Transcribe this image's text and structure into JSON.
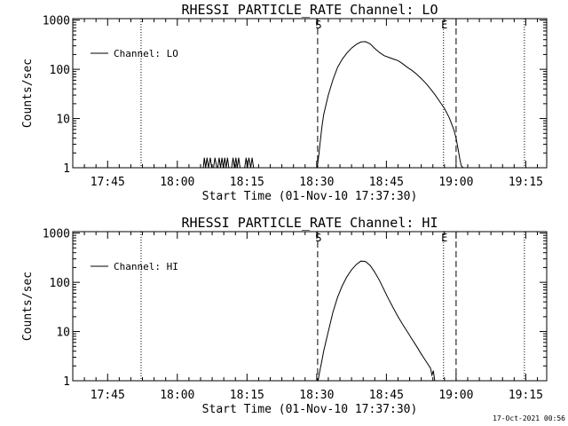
{
  "chart_data": [
    {
      "type": "line",
      "title": "RHESSI PARTICLE_RATE Channel: LO",
      "xlabel": "Start Time (01-Nov-10 17:37:30)",
      "ylabel": "Counts/sec",
      "yscale": "log",
      "ylim": [
        1,
        1000
      ],
      "y_ticks": [
        "1",
        "10",
        "100",
        "1000"
      ],
      "x_unit": "minutes since 17:37:30",
      "xlim": [
        0,
        102
      ],
      "x_ticks": [
        {
          "label": "17:45",
          "value": 7.5
        },
        {
          "label": "18:00",
          "value": 22.5
        },
        {
          "label": "18:15",
          "value": 37.5
        },
        {
          "label": "18:30",
          "value": 52.5
        },
        {
          "label": "18:45",
          "value": 67.5
        },
        {
          "label": "19:00",
          "value": 82.5
        },
        {
          "label": "19:15",
          "value": 97.5
        }
      ],
      "legend": {
        "label": "Channel: LO",
        "position": "top-left"
      },
      "vlines": [
        {
          "value": 14.7,
          "style": "dotted",
          "label": ""
        },
        {
          "value": 52.7,
          "style": "dashed",
          "label": "S"
        },
        {
          "value": 79.8,
          "style": "dotted",
          "label": "E"
        },
        {
          "value": 82.5,
          "style": "dashed",
          "label": ""
        },
        {
          "value": 97.2,
          "style": "dotted",
          "label": ""
        }
      ],
      "series": [
        {
          "name": "Channel: LO",
          "x": [
            28.1,
            28.3,
            28.6,
            28.9,
            29.2,
            29.6,
            29.9,
            30.3,
            30.6,
            31.0,
            31.2,
            31.5,
            31.8,
            32.1,
            32.4,
            32.7,
            33.0,
            33.3,
            33.6,
            33.9,
            34.2,
            34.5,
            34.8,
            35.1,
            35.4,
            35.7,
            36.0,
            36.3,
            36.6,
            37.0,
            37.3,
            37.6,
            37.9,
            38.3,
            38.6,
            38.9,
            39.2,
            52.6,
            52.8,
            53.0,
            53.2,
            53.4,
            53.6,
            54.0,
            55.0,
            56.0,
            57.0,
            58.0,
            59.0,
            60.0,
            61.0,
            62.0,
            63.0,
            64.0,
            65.0,
            66.0,
            67.0,
            68.0,
            69.0,
            70.0,
            71.0,
            72.0,
            73.0,
            74.0,
            75.0,
            76.0,
            77.0,
            78.0,
            79.0,
            80.0,
            81.0,
            82.0,
            82.5,
            83.0,
            83.3,
            83.6,
            84.0
          ],
          "y": [
            1.0,
            1.6,
            1.0,
            1.6,
            1.0,
            1.6,
            1.0,
            1.0,
            1.6,
            1.0,
            1.0,
            1.6,
            1.0,
            1.6,
            1.0,
            1.6,
            1.0,
            1.6,
            1.0,
            1.0,
            1.0,
            1.6,
            1.0,
            1.6,
            1.0,
            1.6,
            1.0,
            1.0,
            1.0,
            1.0,
            1.6,
            1.0,
            1.6,
            1.0,
            1.6,
            1.0,
            1.0,
            1.0,
            1.4,
            2.0,
            3.0,
            4.5,
            6.5,
            12.0,
            30.0,
            62.0,
            110.0,
            160.0,
            215.0,
            270.0,
            320.0,
            360.0,
            365.0,
            330.0,
            265.0,
            220.0,
            190.0,
            175.0,
            162.0,
            150.0,
            130.0,
            110.0,
            95.0,
            80.0,
            65.0,
            52.0,
            40.0,
            30.0,
            22.0,
            16.0,
            10.5,
            6.0,
            4.0,
            2.2,
            1.5,
            1.1,
            1.0
          ]
        }
      ]
    },
    {
      "type": "line",
      "title": "RHESSI PARTICLE_RATE Channel: HI",
      "xlabel": "Start Time (01-Nov-10 17:37:30)",
      "ylabel": "Counts/sec",
      "yscale": "log",
      "ylim": [
        1,
        1000
      ],
      "y_ticks": [
        "1",
        "10",
        "100",
        "1000"
      ],
      "x_unit": "minutes since 17:37:30",
      "xlim": [
        0,
        102
      ],
      "x_ticks": [
        {
          "label": "17:45",
          "value": 7.5
        },
        {
          "label": "18:00",
          "value": 22.5
        },
        {
          "label": "18:15",
          "value": 37.5
        },
        {
          "label": "18:30",
          "value": 52.5
        },
        {
          "label": "18:45",
          "value": 67.5
        },
        {
          "label": "19:00",
          "value": 82.5
        },
        {
          "label": "19:15",
          "value": 97.5
        }
      ],
      "legend": {
        "label": "Channel: HI",
        "position": "top-left"
      },
      "vlines": [
        {
          "value": 14.7,
          "style": "dotted",
          "label": ""
        },
        {
          "value": 52.7,
          "style": "dashed",
          "label": "S"
        },
        {
          "value": 79.8,
          "style": "dotted",
          "label": "E"
        },
        {
          "value": 82.5,
          "style": "dashed",
          "label": ""
        },
        {
          "value": 97.2,
          "style": "dotted",
          "label": ""
        }
      ],
      "series": [
        {
          "name": "Channel: HI",
          "x": [
            52.8,
            53.0,
            53.3,
            53.6,
            54.0,
            55.0,
            56.0,
            57.0,
            58.0,
            59.0,
            60.0,
            61.0,
            62.0,
            63.0,
            64.0,
            65.0,
            66.0,
            67.0,
            68.0,
            69.0,
            70.0,
            71.0,
            72.0,
            73.0,
            74.0,
            75.0,
            76.0,
            77.0,
            77.3,
            77.6,
            77.9
          ],
          "y": [
            1.0,
            1.3,
            1.8,
            2.5,
            4.0,
            10.0,
            25.0,
            50.0,
            85.0,
            130.0,
            180.0,
            230.0,
            270.0,
            265.0,
            220.0,
            160.0,
            110.0,
            70.0,
            45.0,
            30.0,
            20.0,
            14.0,
            10.0,
            7.0,
            5.0,
            3.5,
            2.5,
            1.8,
            1.3,
            1.6,
            1.0
          ]
        }
      ]
    }
  ],
  "timestamp": "17-Oct-2021 00:56"
}
